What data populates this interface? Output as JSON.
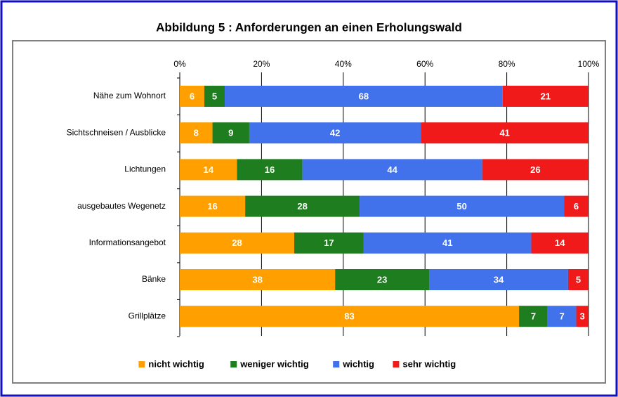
{
  "chart_data": {
    "type": "stacked-barh",
    "title": "Abbildung 5 :  Anforderungen an einen Erholungswald",
    "categories": [
      "Nähe zum Wohnort",
      "Sichtschneisen / Ausblicke",
      "Lichtungen",
      "ausgebautes Wegenetz",
      "Informationsangebot",
      "Bänke",
      "Grillplätze"
    ],
    "series": [
      {
        "name": "nicht wichtig",
        "color": "#ffa000",
        "values": [
          6,
          8,
          14,
          16,
          28,
          38,
          83
        ]
      },
      {
        "name": "weniger wichtig",
        "color": "#1e7d1e",
        "values": [
          5,
          9,
          16,
          28,
          17,
          23,
          7
        ]
      },
      {
        "name": "wichtig",
        "color": "#4271ec",
        "values": [
          68,
          42,
          44,
          50,
          41,
          34,
          7
        ]
      },
      {
        "name": "sehr wichtig",
        "color": "#f01a1a",
        "values": [
          21,
          41,
          26,
          6,
          14,
          5,
          3
        ]
      }
    ],
    "xlim": [
      0,
      100
    ],
    "xticks": [
      {
        "value": 0,
        "label": "0%"
      },
      {
        "value": 20,
        "label": "20%"
      },
      {
        "value": 40,
        "label": "40%"
      },
      {
        "value": 60,
        "label": "60%"
      },
      {
        "value": 80,
        "label": "80%"
      },
      {
        "value": 100,
        "label": "100%"
      }
    ],
    "grid": true,
    "legend": "bottom"
  }
}
